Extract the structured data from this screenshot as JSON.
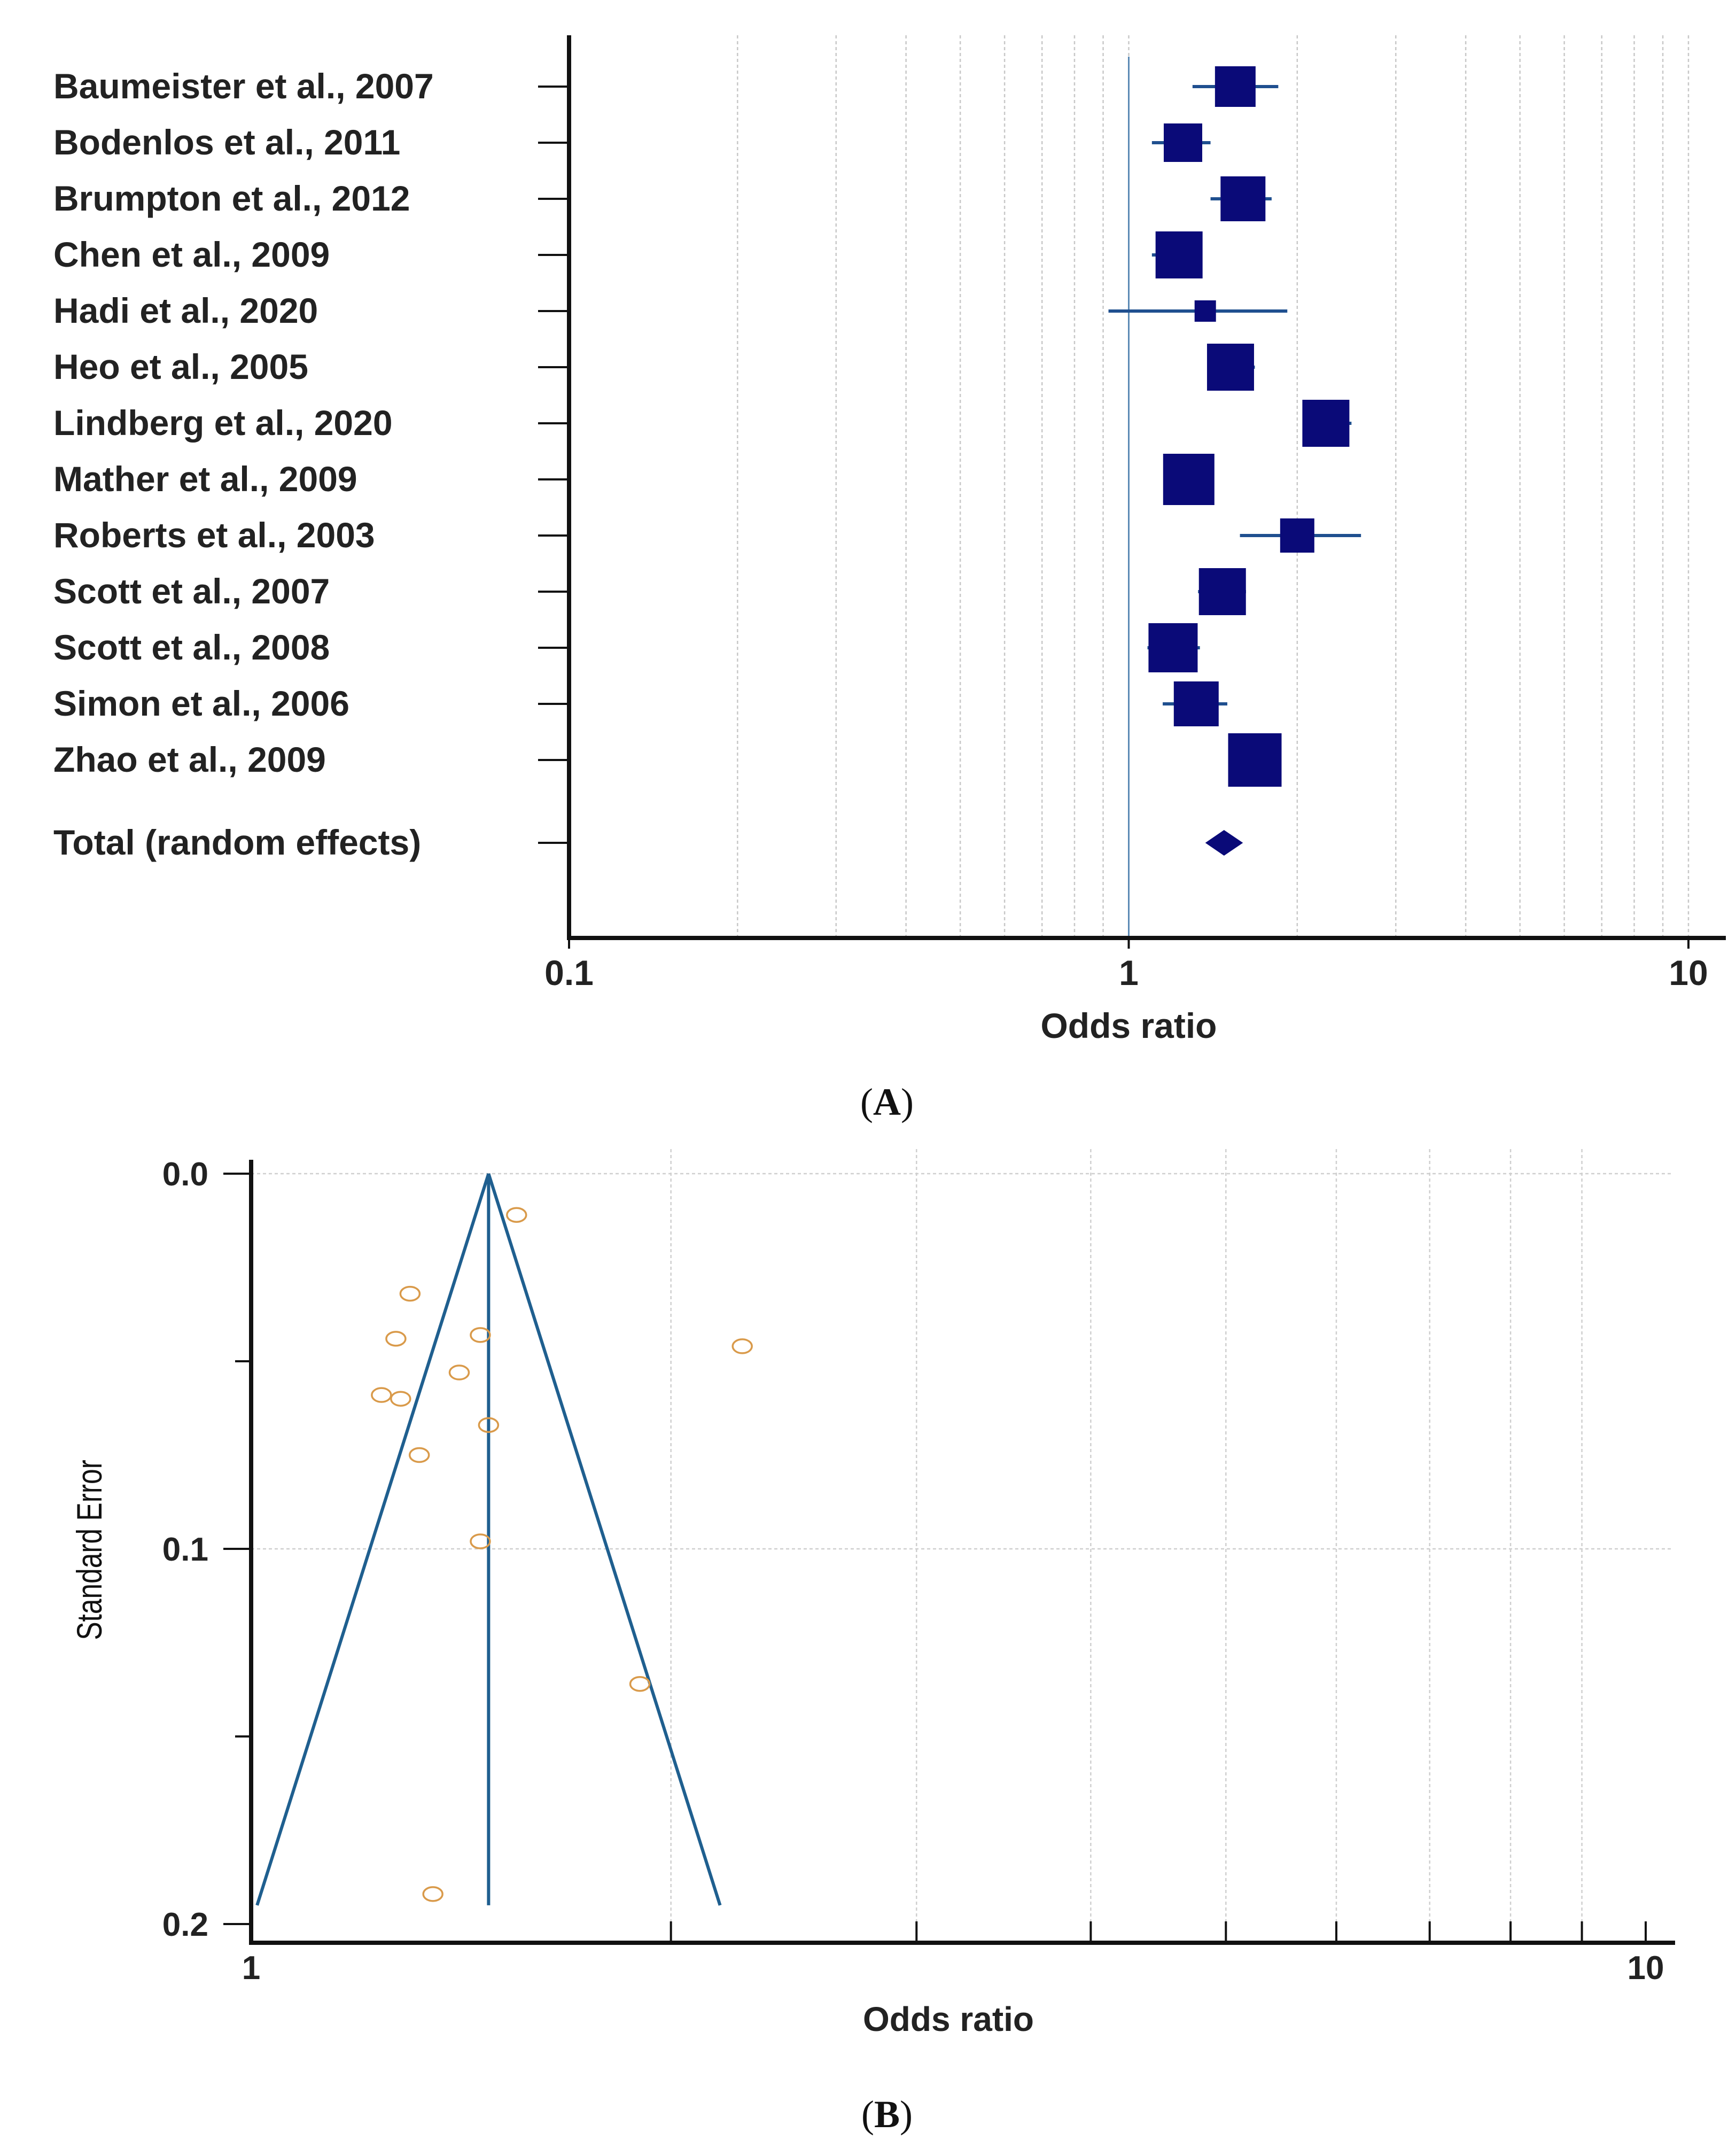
{
  "chart_data": [
    {
      "type": "forest",
      "panel_label": "A",
      "xlabel": "Odds ratio",
      "xscale": "log",
      "xlim": [
        0.1,
        10
      ],
      "tick_labels": [
        "0.1",
        "1",
        "10"
      ],
      "reference_line": 1,
      "studies": [
        {
          "label": "Baumeister et al., 2007",
          "or": 1.55,
          "lo": 1.3,
          "hi": 1.85
        },
        {
          "label": "Bodenlos et al., 2011",
          "or": 1.25,
          "lo": 1.1,
          "hi": 1.4
        },
        {
          "label": "Brumpton et al., 2012",
          "or": 1.6,
          "lo": 1.4,
          "hi": 1.8
        },
        {
          "label": "Chen et al., 2009",
          "or": 1.23,
          "lo": 1.1,
          "hi": 1.35
        },
        {
          "label": "Hadi et al., 2020",
          "or": 1.37,
          "lo": 0.92,
          "hi": 1.92
        },
        {
          "label": "Heo et al., 2005",
          "or": 1.52,
          "lo": 1.38,
          "hi": 1.68
        },
        {
          "label": "Lindberg et al., 2020",
          "or": 2.25,
          "lo": 2.05,
          "hi": 2.5
        },
        {
          "label": "Mather et al., 2009",
          "or": 1.28,
          "lo": 1.16,
          "hi": 1.42
        },
        {
          "label": "Roberts et al., 2003",
          "or": 2.0,
          "lo": 1.58,
          "hi": 2.6
        },
        {
          "label": "Scott et al., 2007",
          "or": 1.47,
          "lo": 1.33,
          "hi": 1.62
        },
        {
          "label": "Scott et al., 2008",
          "or": 1.2,
          "lo": 1.08,
          "hi": 1.34
        },
        {
          "label": "Simon et al., 2006",
          "or": 1.32,
          "lo": 1.15,
          "hi": 1.5
        },
        {
          "label": "Zhao et al., 2009",
          "or": 1.68,
          "lo": 1.52,
          "hi": 1.85
        }
      ],
      "pooled": {
        "label": "Total (random effects)",
        "or": 1.48,
        "lo": 1.37,
        "hi": 1.6
      }
    },
    {
      "type": "scatter",
      "subtype": "funnel",
      "panel_label": "B",
      "xlabel": "Odds ratio",
      "ylabel": "Standard Error",
      "xscale": "log",
      "xlim": [
        1,
        10
      ],
      "ylim": [
        0.2,
        0.0
      ],
      "tick_labels_x": [
        "1",
        "10"
      ],
      "tick_labels_y": [
        "0.0",
        "0.1",
        "0.2"
      ],
      "pooled_or": 1.48,
      "funnel_se_max": 0.195,
      "points": [
        {
          "or": 1.55,
          "se": 0.011
        },
        {
          "or": 1.3,
          "se": 0.032
        },
        {
          "or": 1.27,
          "se": 0.044
        },
        {
          "or": 1.46,
          "se": 0.043
        },
        {
          "or": 2.25,
          "se": 0.046
        },
        {
          "or": 1.41,
          "se": 0.053
        },
        {
          "or": 1.24,
          "se": 0.059
        },
        {
          "or": 1.28,
          "se": 0.06
        },
        {
          "or": 1.48,
          "se": 0.067
        },
        {
          "or": 1.32,
          "se": 0.075
        },
        {
          "or": 1.46,
          "se": 0.098
        },
        {
          "or": 1.9,
          "se": 0.136
        },
        {
          "or": 1.35,
          "se": 0.192
        }
      ]
    }
  ],
  "colors": {
    "marker": "#0a0a78",
    "ci_line": "#1f4f8f",
    "funnel_line": "#1f5f8f",
    "point": "#d99a4a",
    "grid": "#cccccc",
    "axis": "#111111"
  }
}
